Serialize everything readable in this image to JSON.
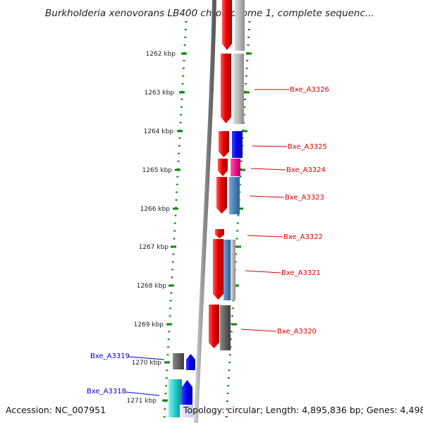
{
  "title": "Burkholderia xenovorans LB400 chromosome 1, complete sequenc...",
  "accession": "Accession: NC_007951",
  "topology": "Topology: circular; Length: 4,895,836 bp; Genes: 4,498",
  "ticks": [
    "1262 kbp",
    "1263 kbp",
    "1264 kbp",
    "1265 kbp",
    "1266 kbp",
    "1267 kbp",
    "1268 kbp",
    "1269 kbp",
    "1270 kbp",
    "1271 kbp"
  ],
  "genes": [
    {
      "name": "Bxe_A3326",
      "color": "#dd0000"
    },
    {
      "name": "Bxe_A3325",
      "color": "#dd0000"
    },
    {
      "name": "Bxe_A3324",
      "color": "#dd0000"
    },
    {
      "name": "Bxe_A3323",
      "color": "#dd0000"
    },
    {
      "name": "Bxe_A3322",
      "color": "#dd0000"
    },
    {
      "name": "Bxe_A3321",
      "color": "#dd0000"
    },
    {
      "name": "Bxe_A3320",
      "color": "#dd0000"
    },
    {
      "name": "Bxe_A3319",
      "color": "#0000cc"
    },
    {
      "name": "Bxe_A3318",
      "color": "#0000cc"
    }
  ]
}
